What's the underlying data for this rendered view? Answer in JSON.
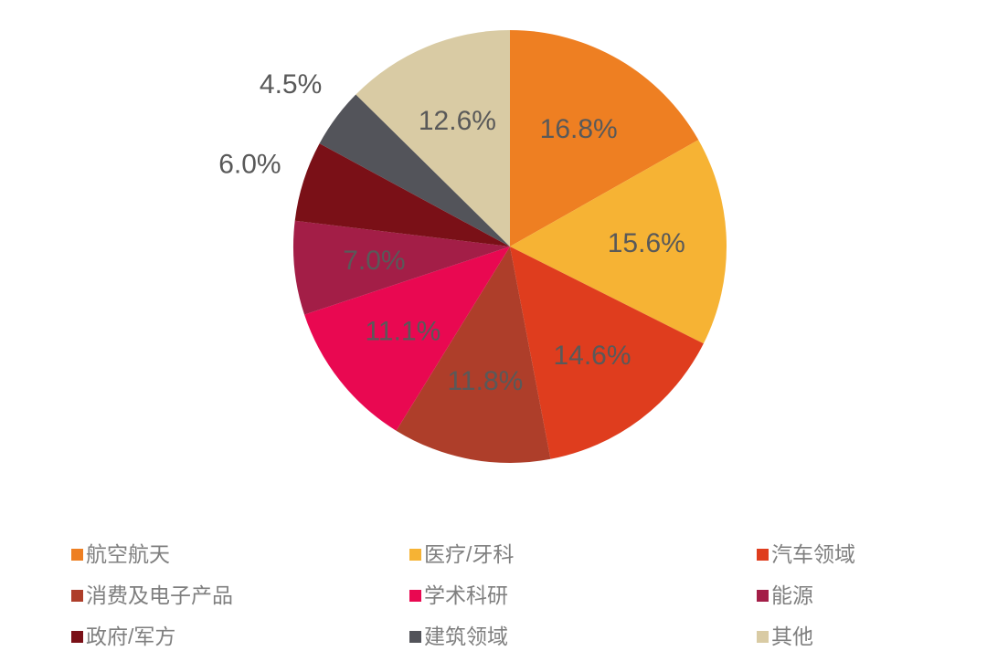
{
  "chart_data": {
    "type": "pie",
    "title": "",
    "direction": "clockwise",
    "start_angle_deg": 0,
    "legend_position": "bottom",
    "background_color": "#ffffff",
    "label_color": "#595959",
    "legend_text_color": "#7f7f7f",
    "series": [
      {
        "key": "aerospace",
        "label": "航空航天",
        "value": 16.8,
        "display": "16.8%",
        "color": "#ee7f22",
        "label_inside": true
      },
      {
        "key": "medical-dental",
        "label": "医疗/牙科",
        "value": 15.6,
        "display": "15.6%",
        "color": "#f6b334",
        "label_inside": true
      },
      {
        "key": "automotive",
        "label": "汽车领域",
        "value": 14.6,
        "display": "14.6%",
        "color": "#df3d1e",
        "label_inside": true
      },
      {
        "key": "consumer-electronics",
        "label": "消费及电子产品",
        "value": 11.8,
        "display": "11.8%",
        "color": "#ae3e2a",
        "label_inside": true
      },
      {
        "key": "academic-research",
        "label": "学术科研",
        "value": 11.1,
        "display": "11.1%",
        "color": "#e90851",
        "label_inside": true
      },
      {
        "key": "energy",
        "label": "能源",
        "value": 7.0,
        "display": "7.0%",
        "color": "#a31e47",
        "label_inside": true
      },
      {
        "key": "government-military",
        "label": "政府/军方",
        "value": 6.0,
        "display": "6.0%",
        "color": "#7a1017",
        "label_inside": false
      },
      {
        "key": "construction",
        "label": "建筑领域",
        "value": 4.5,
        "display": "4.5%",
        "color": "#53545a",
        "label_inside": false
      },
      {
        "key": "other",
        "label": "其他",
        "value": 12.6,
        "display": "12.6%",
        "color": "#d9cba4",
        "label_inside": true
      }
    ]
  }
}
